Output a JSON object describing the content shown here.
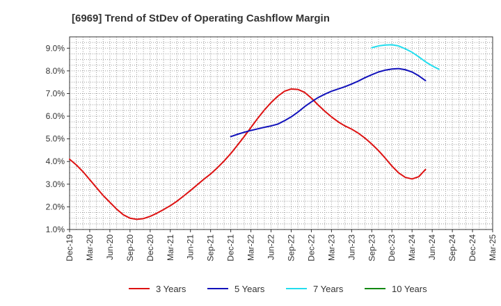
{
  "chart_data": {
    "type": "line",
    "title": "[6969]  Trend of StDev of Operating Cashflow Margin",
    "xlabel": "",
    "ylabel": "",
    "x_ticks": [
      "Dec-19",
      "Mar-20",
      "Jun-20",
      "Sep-20",
      "Dec-20",
      "Mar-21",
      "Jun-21",
      "Sep-21",
      "Dec-21",
      "Mar-22",
      "Jun-22",
      "Sep-22",
      "Dec-22",
      "Mar-23",
      "Jun-23",
      "Sep-23",
      "Dec-23",
      "Mar-24",
      "Jun-24",
      "Sep-24",
      "Dec-24",
      "Mar-25"
    ],
    "y_ticks": [
      "1.0%",
      "2.0%",
      "3.0%",
      "4.0%",
      "5.0%",
      "6.0%",
      "7.0%",
      "8.0%",
      "9.0%"
    ],
    "ylim": [
      1.0,
      9.5
    ],
    "grid": true,
    "legend_position": "bottom",
    "series": [
      {
        "name": "3 Years",
        "color": "#dd1111",
        "points": [
          [
            "Dec-19",
            4.1
          ],
          [
            "Jan-20",
            3.85
          ],
          [
            "Feb-20",
            3.55
          ],
          [
            "Mar-20",
            3.2
          ],
          [
            "Apr-20",
            2.85
          ],
          [
            "May-20",
            2.5
          ],
          [
            "Jun-20",
            2.2
          ],
          [
            "Jul-20",
            1.9
          ],
          [
            "Aug-20",
            1.65
          ],
          [
            "Sep-20",
            1.5
          ],
          [
            "Oct-20",
            1.45
          ],
          [
            "Nov-20",
            1.48
          ],
          [
            "Dec-20",
            1.58
          ],
          [
            "Jan-21",
            1.72
          ],
          [
            "Feb-21",
            1.88
          ],
          [
            "Mar-21",
            2.05
          ],
          [
            "Apr-21",
            2.25
          ],
          [
            "May-21",
            2.48
          ],
          [
            "Jun-21",
            2.72
          ],
          [
            "Jul-21",
            2.97
          ],
          [
            "Aug-21",
            3.22
          ],
          [
            "Sep-21",
            3.45
          ],
          [
            "Oct-21",
            3.72
          ],
          [
            "Nov-21",
            4.02
          ],
          [
            "Dec-21",
            4.35
          ],
          [
            "Jan-22",
            4.72
          ],
          [
            "Feb-22",
            5.1
          ],
          [
            "Mar-22",
            5.5
          ],
          [
            "Apr-22",
            5.9
          ],
          [
            "May-22",
            6.27
          ],
          [
            "Jun-22",
            6.6
          ],
          [
            "Jul-22",
            6.88
          ],
          [
            "Aug-22",
            7.1
          ],
          [
            "Sep-22",
            7.2
          ],
          [
            "Oct-22",
            7.18
          ],
          [
            "Nov-22",
            7.05
          ],
          [
            "Dec-22",
            6.8
          ],
          [
            "Jan-23",
            6.5
          ],
          [
            "Feb-23",
            6.22
          ],
          [
            "Mar-23",
            5.97
          ],
          [
            "Apr-23",
            5.75
          ],
          [
            "May-23",
            5.57
          ],
          [
            "Jun-23",
            5.43
          ],
          [
            "Jul-23",
            5.25
          ],
          [
            "Aug-23",
            5.03
          ],
          [
            "Sep-23",
            4.77
          ],
          [
            "Oct-23",
            4.48
          ],
          [
            "Nov-23",
            4.15
          ],
          [
            "Dec-23",
            3.8
          ],
          [
            "Jan-24",
            3.5
          ],
          [
            "Feb-24",
            3.3
          ],
          [
            "Mar-24",
            3.23
          ],
          [
            "Apr-24",
            3.33
          ],
          [
            "May-24",
            3.65
          ]
        ]
      },
      {
        "name": "5 Years",
        "color": "#1111bb",
        "points": [
          [
            "Dec-21",
            5.1
          ],
          [
            "Jan-22",
            5.2
          ],
          [
            "Feb-22",
            5.29
          ],
          [
            "Mar-22",
            5.37
          ],
          [
            "Apr-22",
            5.44
          ],
          [
            "May-22",
            5.51
          ],
          [
            "Jun-22",
            5.57
          ],
          [
            "Jul-22",
            5.65
          ],
          [
            "Aug-22",
            5.8
          ],
          [
            "Sep-22",
            5.97
          ],
          [
            "Oct-22",
            6.18
          ],
          [
            "Nov-22",
            6.42
          ],
          [
            "Dec-22",
            6.63
          ],
          [
            "Jan-23",
            6.82
          ],
          [
            "Feb-23",
            6.97
          ],
          [
            "Mar-23",
            7.1
          ],
          [
            "Apr-23",
            7.2
          ],
          [
            "May-23",
            7.3
          ],
          [
            "Jun-23",
            7.42
          ],
          [
            "Jul-23",
            7.55
          ],
          [
            "Aug-23",
            7.7
          ],
          [
            "Sep-23",
            7.83
          ],
          [
            "Oct-23",
            7.95
          ],
          [
            "Nov-23",
            8.03
          ],
          [
            "Dec-23",
            8.08
          ],
          [
            "Jan-24",
            8.1
          ],
          [
            "Feb-24",
            8.05
          ],
          [
            "Mar-24",
            7.95
          ],
          [
            "Apr-24",
            7.78
          ],
          [
            "May-24",
            7.57
          ]
        ]
      },
      {
        "name": "7 Years",
        "color": "#22ddee",
        "points": [
          [
            "Sep-23",
            9.02
          ],
          [
            "Oct-23",
            9.1
          ],
          [
            "Nov-23",
            9.14
          ],
          [
            "Dec-23",
            9.15
          ],
          [
            "Jan-24",
            9.1
          ],
          [
            "Feb-24",
            8.97
          ],
          [
            "Mar-24",
            8.82
          ],
          [
            "Apr-24",
            8.62
          ],
          [
            "May-24",
            8.4
          ],
          [
            "Jun-24",
            8.22
          ],
          [
            "Jul-24",
            8.07
          ]
        ]
      },
      {
        "name": "10 Years",
        "color": "#118811",
        "points": []
      }
    ]
  }
}
